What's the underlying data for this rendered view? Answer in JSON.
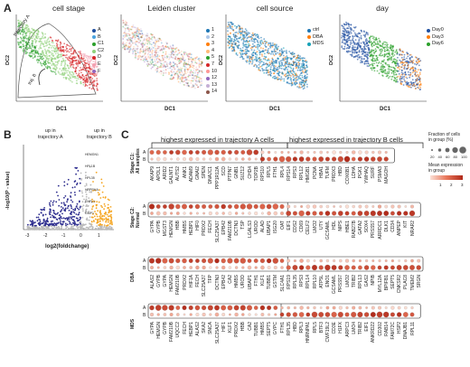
{
  "panels": {
    "A": {
      "letter": "A",
      "titles": [
        "cell stage",
        "Leiden cluster",
        "cell source",
        "day"
      ],
      "xlabel": "DC1",
      "ylabel": "DC2",
      "annotations": {
        "traj_a": "trajectory A",
        "traj_b": "traj. B"
      },
      "legend_stage": [
        {
          "label": "A",
          "color": "#1f4fa0"
        },
        {
          "label": "B",
          "color": "#4aa3df"
        },
        {
          "label": "C1",
          "color": "#2ca02c"
        },
        {
          "label": "C2",
          "color": "#8fd17a"
        },
        {
          "label": "D",
          "color": "#d62728"
        },
        {
          "label": "E",
          "color": "#f4a0b0"
        },
        {
          "label": "F",
          "color": "#9467bd"
        }
      ],
      "legend_cluster": [
        {
          "label": "1",
          "color": "#1f77b4"
        },
        {
          "label": "2",
          "color": "#aec7e8"
        },
        {
          "label": "3",
          "color": "#ff7f0e"
        },
        {
          "label": "4",
          "color": "#ffbb78"
        },
        {
          "label": "5",
          "color": "#2ca02c"
        },
        {
          "label": "7",
          "color": "#d62728"
        },
        {
          "label": "10",
          "color": "#ff9896"
        },
        {
          "label": "12",
          "color": "#9467bd"
        },
        {
          "label": "13",
          "color": "#c5b0d5"
        },
        {
          "label": "14",
          "color": "#8c564b"
        }
      ],
      "legend_source": [
        {
          "label": "ctrl",
          "color": "#1f77b4"
        },
        {
          "label": "DBA",
          "color": "#ff7f0e"
        },
        {
          "label": "MDS",
          "color": "#17a2b8"
        }
      ],
      "legend_day": [
        {
          "label": "Day0",
          "color": "#1f4fa0"
        },
        {
          "label": "Day3",
          "color": "#ff7f0e"
        },
        {
          "label": "Day6",
          "color": "#2ca02c"
        }
      ]
    },
    "B": {
      "letter": "B",
      "up_a": "up in\ntrajectory A",
      "up_b": "up in\ntrajectory B",
      "xlabel": "log2(foldchange)",
      "ylabel": "-log10(P - value)",
      "xticks": [
        "-3",
        "-2",
        "-1",
        "0",
        "1"
      ],
      "gene_labels": [
        "HEMGN1",
        "HPL1B",
        "HPL35",
        "HRPRHA",
        "ENFL1",
        "GMP1"
      ]
    },
    "C": {
      "letter": "C",
      "header_a": "highest expressed in trajectory A cells",
      "header_b": "highest expressed in trajectory B cells",
      "size_legend_title": "Fraction of cells\nin group (%)",
      "size_legend_ticks": [
        "20",
        "40",
        "60",
        "80",
        "100"
      ],
      "color_legend_title": "Mean expression\nin group",
      "color_legend_ticks": [
        "1",
        "2",
        "3"
      ],
      "groups": [
        {
          "label": "Stage C1:\nAll samples",
          "rows": [
            "A",
            "B"
          ],
          "genes_a": [
            "AKAP9",
            "APOL1",
            "ARID2",
            "GALNT1",
            "AUTS2",
            "ANK1",
            "ADAM9",
            "GNAI2",
            "SPEN",
            "DNAJC1",
            "PPP1R12A",
            "SCD",
            "PTPN7",
            "GNB1",
            "SUZ12",
            "CHD4",
            "TOP2B"
          ],
          "genes_b": [
            "RPS10",
            "RPL5",
            "FTH1",
            "RPL4",
            "RPS14",
            "RPS3",
            "RPL12",
            "HMGB1",
            "PCNA",
            "HBA1",
            "TUFM",
            "PRDX3",
            "HBD",
            "COX6B1",
            "LDHA",
            "PGK1",
            "YWHAQ",
            "SURF",
            "PSMA3",
            "MAGOH"
          ]
        },
        {
          "label": "Stage C2:\nNormal",
          "rows": [
            "A",
            "B"
          ],
          "genes_a": [
            "GYPA",
            "GYPB",
            "MGST3",
            "HEMGN",
            "HBB",
            "HMBS",
            "HEBP1",
            "HIF0",
            "PRDX2",
            "FECH",
            "SLC25A37",
            "EPB42",
            "FAM210B",
            "DCTN3",
            "TSP",
            "LGALS3",
            "UROD",
            "ALAD",
            "UBAP1",
            "ISG20",
            "OAT"
          ],
          "genes_b": [
            "EIF1",
            "CDS2",
            "CD69",
            "CELF2",
            "LMO2",
            "UTY",
            "GCSAML",
            "HDL",
            "NIPS",
            "HBE1",
            "RAB27B",
            "GATA2",
            "SOX4",
            "PRSS57",
            "ARRDC1",
            "DLK1",
            "CD34",
            "ANPEP",
            "KIT",
            "NRAR2"
          ]
        },
        {
          "label": "DBA",
          "rows": [
            "A",
            "B"
          ],
          "genes_a": [
            "ALAS2",
            "GYPB",
            "GYPA",
            "HEMGN",
            "FAM210B",
            "PRDX2",
            "HIF1A",
            "FECH",
            "SLC25A37",
            "TFP",
            "DCTN3",
            "EPB42",
            "CA2",
            "HMBS",
            "UROD",
            "UBAP1",
            "FTH1",
            "KLF1",
            "TUBB1",
            "GSTM",
            "SLC4A1"
          ],
          "genes_b": [
            "RPS19",
            "RPL35",
            "RPS3",
            "RPL14",
            "RPL10",
            "ATP5L",
            "ENO1",
            "GCSAML",
            "PRSS57",
            "LMO2",
            "TRIB2",
            "RPL13",
            "GAS2",
            "NPIB",
            "MYL12A",
            "BPIFB1",
            "SEPT5",
            "CNKSR2",
            "PLAC8",
            "TMEM2",
            "SRGN"
          ]
        },
        {
          "label": "MDS",
          "rows": [
            "A",
            "B"
          ],
          "genes_a": [
            "GYPA",
            "HEMGN",
            "GYPB",
            "FAM210B",
            "UQCC2",
            "FECH",
            "HEBP1",
            "ALAS2",
            "SKA2",
            "SNCA",
            "SLC25A37",
            "HIF1",
            "KLF1",
            "PRDX2",
            "HBB",
            "CA2",
            "TUBB1",
            "HMBS",
            "SEPT5",
            "GYPC"
          ],
          "genes_b": [
            "FTH1",
            "RPL35",
            "HBD",
            "RPL3",
            "HNRNPA1",
            "RPL5",
            "BTF3",
            "CWF19L2",
            "CD3E",
            "H1FX",
            "ARPC3",
            "LMO4",
            "TRIB2",
            "EIF1",
            "ANKRD22",
            "CD302",
            "RAB14",
            "FAM72C",
            "HSP2",
            "DNAJB1",
            "RPL11"
          ]
        }
      ]
    }
  },
  "colors": {
    "volcano_dots": "#2e2e8f",
    "volcano_orange": "#f5a623",
    "dot_hi": "#b02a1a",
    "dot_mid": "#e8765a",
    "dot_lo": "#fbe0d6"
  }
}
